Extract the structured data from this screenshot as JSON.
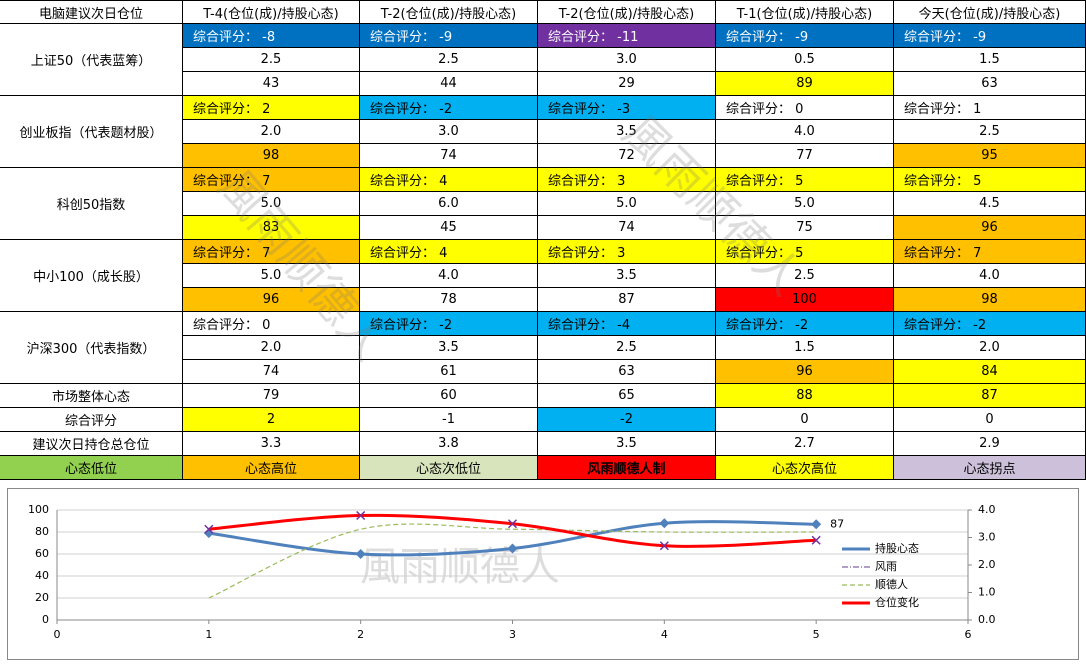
{
  "table": {
    "header": [
      "电脑建议次日仓位",
      "T-4(仓位(成)/持股心态)",
      "T-2(仓位(成)/持股心态)",
      "T-2(仓位(成)/持股心态)",
      "T-1(仓位(成)/持股心态)",
      "今天(仓位(成)/持股心态)"
    ],
    "groups": [
      {
        "label": "上证50（代表蓝筹）",
        "rows": [
          {
            "cells": [
              "综合评分： -8",
              "综合评分： -9",
              "综合评分： -11",
              "综合评分： -9",
              "综合评分： -9"
            ],
            "fills": [
              "#0070c0",
              "#0070c0",
              "#7030a0",
              "#0070c0",
              "#0070c0"
            ]
          },
          {
            "cells": [
              "2.5",
              "2.5",
              "3.0",
              "0.5",
              "1.5"
            ],
            "fills": [
              null,
              null,
              null,
              null,
              null
            ]
          },
          {
            "cells": [
              "43",
              "44",
              "29",
              "89",
              "63"
            ],
            "fills": [
              null,
              null,
              null,
              "#ffff00",
              null
            ]
          }
        ]
      },
      {
        "label": "创业板指（代表题材股）",
        "rows": [
          {
            "cells": [
              "综合评分： 2",
              "综合评分： -2",
              "综合评分： -3",
              "综合评分： 0",
              "综合评分： 1"
            ],
            "fills": [
              "#ffff00",
              "#00b0f0",
              "#00b0f0",
              null,
              null
            ]
          },
          {
            "cells": [
              "2.0",
              "3.0",
              "3.5",
              "4.0",
              "2.5"
            ],
            "fills": [
              null,
              null,
              null,
              null,
              null
            ]
          },
          {
            "cells": [
              "98",
              "74",
              "72",
              "77",
              "95"
            ],
            "fills": [
              "#ffc000",
              null,
              null,
              null,
              "#ffc000"
            ]
          }
        ]
      },
      {
        "label": "科创50指数",
        "rows": [
          {
            "cells": [
              "综合评分： 7",
              "综合评分： 4",
              "综合评分： 3",
              "综合评分： 5",
              "综合评分： 5"
            ],
            "fills": [
              "#ffc000",
              "#ffff00",
              "#ffff00",
              "#ffff00",
              "#ffff00"
            ]
          },
          {
            "cells": [
              "5.0",
              "6.0",
              "5.0",
              "5.0",
              "4.5"
            ],
            "fills": [
              null,
              null,
              null,
              null,
              null
            ]
          },
          {
            "cells": [
              "83",
              "45",
              "74",
              "75",
              "96"
            ],
            "fills": [
              "#ffff00",
              null,
              null,
              null,
              "#ffc000"
            ]
          }
        ]
      },
      {
        "label": "中小100（成长股）",
        "rows": [
          {
            "cells": [
              "综合评分： 7",
              "综合评分： 4",
              "综合评分： 3",
              "综合评分： 5",
              "综合评分： 7"
            ],
            "fills": [
              "#ffc000",
              "#ffff00",
              "#ffff00",
              "#ffff00",
              "#ffc000"
            ]
          },
          {
            "cells": [
              "5.0",
              "4.0",
              "3.5",
              "2.5",
              "4.0"
            ],
            "fills": [
              null,
              null,
              null,
              null,
              null
            ]
          },
          {
            "cells": [
              "96",
              "78",
              "87",
              "100",
              "98"
            ],
            "fills": [
              "#ffc000",
              null,
              null,
              "#ff0000",
              "#ffc000"
            ]
          }
        ]
      },
      {
        "label": "沪深300（代表指数）",
        "rows": [
          {
            "cells": [
              "综合评分： 0",
              "综合评分： -2",
              "综合评分： -4",
              "综合评分： -2",
              "综合评分： -2"
            ],
            "fills": [
              null,
              "#00b0f0",
              "#00b0f0",
              "#00b0f0",
              "#00b0f0"
            ]
          },
          {
            "cells": [
              "2.0",
              "3.5",
              "2.5",
              "1.5",
              "2.0"
            ],
            "fills": [
              null,
              null,
              null,
              null,
              null
            ]
          },
          {
            "cells": [
              "74",
              "61",
              "63",
              "96",
              "84"
            ],
            "fills": [
              null,
              null,
              null,
              "#ffc000",
              "#ffff00"
            ]
          }
        ]
      }
    ],
    "summary": [
      {
        "label": "市场整体心态",
        "cells": [
          "79",
          "60",
          "65",
          "88",
          "87"
        ],
        "fills": [
          null,
          null,
          null,
          "#ffff00",
          "#ffff00"
        ]
      },
      {
        "label": "综合评分",
        "cells": [
          "2",
          "-1",
          "-2",
          "0",
          "0"
        ],
        "fills": [
          "#ffff00",
          null,
          "#00b0f0",
          null,
          null
        ]
      },
      {
        "label": "建议次日持仓总仓位",
        "cells": [
          "3.3",
          "3.8",
          "3.5",
          "2.7",
          "2.9"
        ],
        "fills": [
          null,
          null,
          null,
          null,
          null
        ]
      }
    ],
    "legend": [
      {
        "label": "心态低位",
        "fill": "#92d050"
      },
      {
        "label": "心态高位",
        "fill": "#ffc000"
      },
      {
        "label": "心态次低位",
        "fill": "#d8e4bc"
      },
      {
        "label": "风雨顺德人制",
        "fill": "#ff0000"
      },
      {
        "label": "心态次高位",
        "fill": "#ffff00"
      },
      {
        "label": "心态拐点",
        "fill": "#ccc0da"
      }
    ],
    "watermark": "風雨顺德人"
  },
  "chart_data": {
    "type": "line",
    "x": [
      1,
      2,
      3,
      4,
      5
    ],
    "xlim": [
      0,
      6
    ],
    "xticks": [
      0,
      1,
      2,
      3,
      4,
      5,
      6
    ],
    "ylim": [
      0,
      100
    ],
    "yticks": [
      0,
      20,
      40,
      60,
      80,
      100
    ],
    "y2lim": [
      0,
      4
    ],
    "y2ticks": [
      {
        "value": 0,
        "label": "0.0"
      },
      {
        "value": 1,
        "label": "1.0"
      },
      {
        "value": 2,
        "label": "2.0"
      },
      {
        "value": 3,
        "label": "3.0"
      },
      {
        "value": 4,
        "label": "4.0"
      }
    ],
    "grid": true,
    "legend": "right",
    "data_labels": "last",
    "watermark": "風雨顺德人",
    "series": [
      {
        "name": "持股心态",
        "color": "#4f81bd",
        "values": [
          79,
          60,
          65,
          88,
          87
        ]
      },
      {
        "name": "风雨",
        "color": "#8064a2",
        "axis": "y2",
        "values": [
          null,
          null,
          null,
          null,
          null
        ]
      },
      {
        "name": "顺德人",
        "color": "#9bbb59",
        "axis": "y2",
        "values": [
          0.8,
          3.3,
          3.3,
          3.2,
          3.2
        ]
      },
      {
        "name": "仓位变化",
        "color": "#ff0000",
        "axis": "y2",
        "values": [
          3.3,
          3.8,
          3.5,
          2.7,
          2.9
        ]
      }
    ]
  }
}
